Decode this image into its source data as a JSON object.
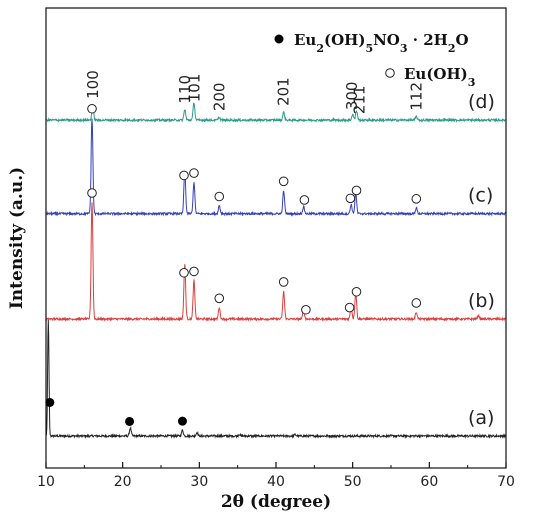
{
  "chart_data": {
    "type": "line",
    "xlabel": "2θ (degree)",
    "ylabel": "Intensity (a.u.)",
    "xlim": [
      10,
      70
    ],
    "xticks": [
      10,
      20,
      30,
      40,
      50,
      60,
      70
    ],
    "grid": false,
    "legend": {
      "placement": "top-right",
      "entries": [
        {
          "marker": "filled-circle",
          "formula": [
            "Eu",
            "2",
            "(OH)",
            "5",
            "NO",
            "3",
            " · 2H",
            "2",
            "O"
          ]
        },
        {
          "marker": "open-circle",
          "formula": [
            "Eu(OH)",
            "3"
          ]
        }
      ]
    },
    "series": [
      {
        "name": "(a)",
        "color": "#222222",
        "baseline": 0.0,
        "peaks": [
          [
            10.3,
            1.0
          ],
          [
            21.0,
            0.07
          ],
          [
            27.8,
            0.05
          ],
          [
            29.7,
            0.03
          ],
          [
            35.2,
            0.015
          ],
          [
            42.5,
            0.012
          ]
        ],
        "markers": {
          "type": "filled",
          "x": [
            10.5,
            20.9,
            27.8
          ]
        }
      },
      {
        "name": "(b)",
        "color": "#d94040",
        "baseline": 1.0,
        "peaks": [
          [
            16.0,
            1.0
          ],
          [
            28.1,
            0.47
          ],
          [
            29.3,
            0.33
          ],
          [
            32.6,
            0.1
          ],
          [
            41.0,
            0.24
          ],
          [
            43.6,
            0.07
          ],
          [
            49.8,
            0.1
          ],
          [
            50.4,
            0.23
          ],
          [
            58.3,
            0.06
          ],
          [
            66.4,
            0.03
          ]
        ],
        "markers": {
          "type": "open",
          "x": [
            16.0,
            28.0,
            29.3,
            32.6,
            41.0,
            43.9,
            49.6,
            50.5,
            58.3
          ]
        }
      },
      {
        "name": "(c)",
        "color": "#3340b8",
        "baseline": 1.9,
        "peaks": [
          [
            16.0,
            0.82
          ],
          [
            28.1,
            0.37
          ],
          [
            29.3,
            0.27
          ],
          [
            32.6,
            0.07
          ],
          [
            41.0,
            0.2
          ],
          [
            43.6,
            0.06
          ],
          [
            49.8,
            0.08
          ],
          [
            50.4,
            0.18
          ],
          [
            58.3,
            0.05
          ]
        ],
        "markers": {
          "type": "open",
          "x": [
            16.0,
            28.0,
            29.3,
            32.6,
            41.0,
            43.7,
            49.7,
            50.5,
            58.3
          ]
        }
      },
      {
        "name": "(d)",
        "color": "#2a9a8c",
        "baseline": 2.7,
        "peaks": [
          [
            16.1,
            0.13
          ],
          [
            28.1,
            0.09
          ],
          [
            29.3,
            0.15
          ],
          [
            32.6,
            0.025
          ],
          [
            41.0,
            0.07
          ],
          [
            50.0,
            0.05
          ],
          [
            50.5,
            0.08
          ],
          [
            58.3,
            0.03
          ]
        ],
        "markers": null
      }
    ],
    "hkl_labels": [
      {
        "text": "100",
        "x": 16.1
      },
      {
        "text": "110",
        "x": 28.1
      },
      {
        "text": "101",
        "x": 29.4
      },
      {
        "text": "200",
        "x": 32.6
      },
      {
        "text": "201",
        "x": 41.0
      },
      {
        "text": "300",
        "x": 49.9
      },
      {
        "text": "211",
        "x": 50.9
      },
      {
        "text": "112",
        "x": 58.3
      }
    ]
  }
}
